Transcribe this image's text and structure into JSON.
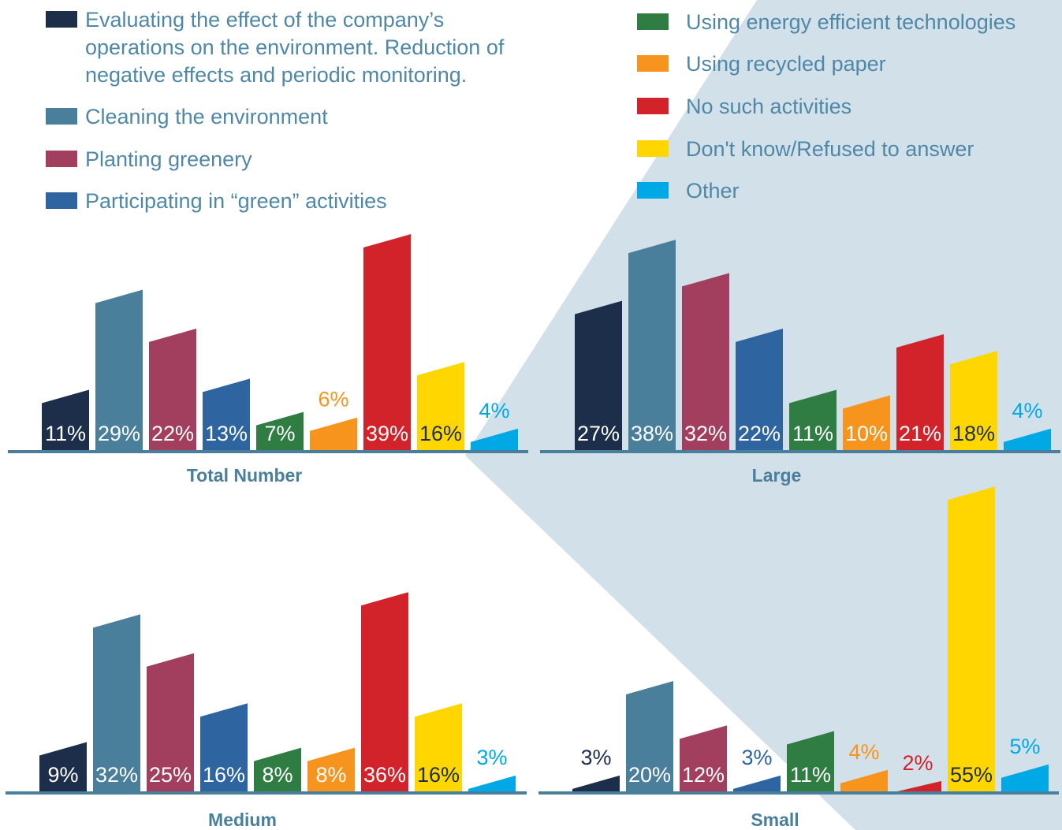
{
  "legend": {
    "categories": [
      "Evaluating the effect of the company’s operations on the environment. Reduction of negative effects and periodic monitoring.",
      "Cleaning the environment",
      "Planting greenery",
      "Participating in “green” activities",
      "Using energy efficient technologies",
      "Using recycled paper",
      "No such activities",
      "Don't know/Refused to answer",
      "Other"
    ],
    "colors": [
      "#1c2e4a",
      "#4a7f9c",
      "#a23f5e",
      "#2e64a0",
      "#2f7d43",
      "#f7941d",
      "#d2232a",
      "#ffd600",
      "#00a9e6"
    ]
  },
  "chart_data": [
    {
      "type": "bar",
      "title": "Total Number",
      "values": [
        11,
        29,
        22,
        13,
        7,
        6,
        39,
        16,
        4
      ],
      "value_labels": [
        "11%",
        "29%",
        "22%",
        "13%",
        "7%",
        "6%",
        "39%",
        "16%",
        "4%"
      ]
    },
    {
      "type": "bar",
      "title": "Large",
      "values": [
        27,
        38,
        32,
        22,
        11,
        10,
        21,
        18,
        4
      ],
      "value_labels": [
        "27%",
        "38%",
        "32%",
        "22%",
        "11%",
        "10%",
        "21%",
        "18%",
        "4%"
      ]
    },
    {
      "type": "bar",
      "title": "Medium",
      "values": [
        9,
        32,
        25,
        16,
        8,
        8,
        36,
        16,
        3
      ],
      "value_labels": [
        "9%",
        "32%",
        "25%",
        "16%",
        "8%",
        "8%",
        "36%",
        "16%",
        "3%"
      ]
    },
    {
      "type": "bar",
      "title": "Small",
      "values": [
        3,
        20,
        12,
        3,
        11,
        4,
        2,
        55,
        5
      ],
      "value_labels": [
        "3%",
        "20%",
        "12%",
        "3%",
        "11%",
        "4%",
        "2%",
        "55%",
        "5%"
      ]
    }
  ]
}
